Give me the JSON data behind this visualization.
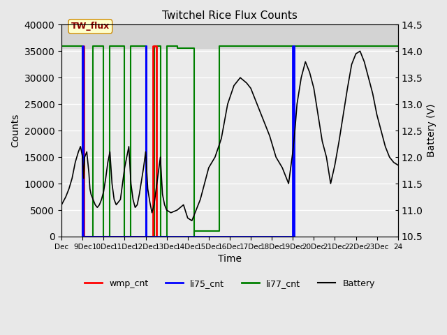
{
  "title": "Twitchel Rice Flux Counts",
  "xlabel": "Time",
  "ylabel_left": "Counts",
  "ylabel_right": "Battery (V)",
  "xlim": [
    0,
    16
  ],
  "ylim_left": [
    0,
    40000
  ],
  "ylim_right": [
    10.5,
    14.5
  ],
  "yticks_left": [
    0,
    5000,
    10000,
    15000,
    20000,
    25000,
    30000,
    35000,
    40000
  ],
  "yticks_right": [
    10.5,
    11.0,
    11.5,
    12.0,
    12.5,
    13.0,
    13.5,
    14.0,
    14.5
  ],
  "xtick_labels": [
    "Dec",
    "9Dec",
    "10Dec",
    "11Dec",
    "12Dec",
    "13Dec",
    "14Dec",
    "15Dec",
    "16Dec",
    "17Dec",
    "18Dec",
    "19Dec",
    "20Dec",
    "21Dec",
    "22Dec",
    "23Dec",
    "24"
  ],
  "bg_color": "#e8e8e8",
  "plot_bg_color": "#ebebeb",
  "shaded_top_color": "#d3d3d3",
  "annotation_text": "TW_flux",
  "annotation_facecolor": "#ffffcc",
  "annotation_edgecolor": "#cc8800",
  "li77_x": [
    0.0,
    1.0,
    1.0,
    1.5,
    1.5,
    2.0,
    2.0,
    2.3,
    2.3,
    3.0,
    3.0,
    3.3,
    3.3,
    4.0,
    4.0,
    4.4,
    4.4,
    4.72,
    4.72,
    5.0,
    5.0,
    5.5,
    5.5,
    6.3,
    6.3,
    6.31,
    6.31,
    7.5,
    7.5,
    16.0
  ],
  "li77_y": [
    36000,
    36000,
    0,
    0,
    36000,
    36000,
    0,
    0,
    36000,
    36000,
    0,
    0,
    36000,
    36000,
    0,
    0,
    36000,
    36000,
    0,
    0,
    36000,
    36000,
    35500,
    35500,
    0,
    0,
    1000,
    1000,
    36000,
    36000
  ],
  "wmp_x": [
    0.98,
    0.98,
    1.06,
    1.06,
    4.35,
    4.35,
    4.53,
    4.53
  ],
  "wmp_y": [
    0,
    36000,
    36000,
    0,
    0,
    36000,
    36000,
    0
  ],
  "li75_x": [
    1.0,
    1.0,
    1.02,
    1.02,
    4.0,
    4.0,
    4.02,
    4.02,
    11.0,
    11.0,
    11.05,
    11.05
  ],
  "li75_y": [
    0,
    36000,
    36000,
    0,
    0,
    36000,
    36000,
    0,
    0,
    36000,
    36000,
    0
  ],
  "batt_x": [
    0.0,
    0.2,
    0.35,
    0.5,
    0.65,
    0.8,
    0.9,
    1.0,
    1.05,
    1.1,
    1.2,
    1.3,
    1.35,
    1.4,
    1.5,
    1.6,
    1.7,
    1.8,
    1.9,
    2.0,
    2.1,
    2.2,
    2.3,
    2.4,
    2.5,
    2.6,
    2.7,
    2.8,
    2.9,
    3.0,
    3.1,
    3.2,
    3.3,
    3.4,
    3.5,
    3.6,
    3.7,
    3.8,
    3.9,
    4.0,
    4.1,
    4.2,
    4.3,
    4.4,
    4.5,
    4.6,
    4.7,
    4.8,
    4.9,
    5.0,
    5.2,
    5.5,
    5.8,
    6.0,
    6.2,
    6.4,
    6.6,
    6.8,
    7.0,
    7.3,
    7.6,
    7.9,
    8.2,
    8.5,
    8.8,
    9.0,
    9.3,
    9.6,
    9.9,
    10.2,
    10.5,
    10.8,
    11.0,
    11.1,
    11.2,
    11.4,
    11.6,
    11.8,
    12.0,
    12.2,
    12.4,
    12.6,
    12.8,
    13.0,
    13.2,
    13.4,
    13.6,
    13.8,
    14.0,
    14.2,
    14.4,
    14.6,
    14.8,
    15.0,
    15.2,
    15.4,
    15.6,
    15.8,
    16.0
  ],
  "batt_v": [
    11.1,
    11.25,
    11.4,
    11.6,
    11.9,
    12.1,
    12.2,
    12.0,
    11.6,
    12.0,
    12.1,
    11.7,
    11.4,
    11.3,
    11.2,
    11.1,
    11.05,
    11.1,
    11.2,
    11.35,
    11.6,
    11.9,
    12.1,
    11.5,
    11.2,
    11.1,
    11.15,
    11.2,
    11.5,
    11.8,
    12.0,
    12.2,
    11.5,
    11.2,
    11.05,
    11.1,
    11.3,
    11.55,
    11.8,
    12.1,
    11.4,
    11.15,
    10.95,
    11.1,
    11.4,
    11.7,
    12.0,
    11.3,
    11.1,
    11.0,
    10.95,
    11.0,
    11.1,
    10.85,
    10.8,
    11.0,
    11.2,
    11.5,
    11.8,
    12.0,
    12.35,
    13.0,
    13.35,
    13.5,
    13.4,
    13.3,
    13.0,
    12.7,
    12.4,
    12.0,
    11.8,
    11.5,
    12.1,
    12.5,
    13.0,
    13.5,
    13.8,
    13.6,
    13.3,
    12.8,
    12.3,
    12.0,
    11.5,
    11.85,
    12.3,
    12.8,
    13.3,
    13.75,
    13.95,
    14.0,
    13.8,
    13.5,
    13.2,
    12.8,
    12.5,
    12.2,
    12.0,
    11.9,
    11.85
  ]
}
